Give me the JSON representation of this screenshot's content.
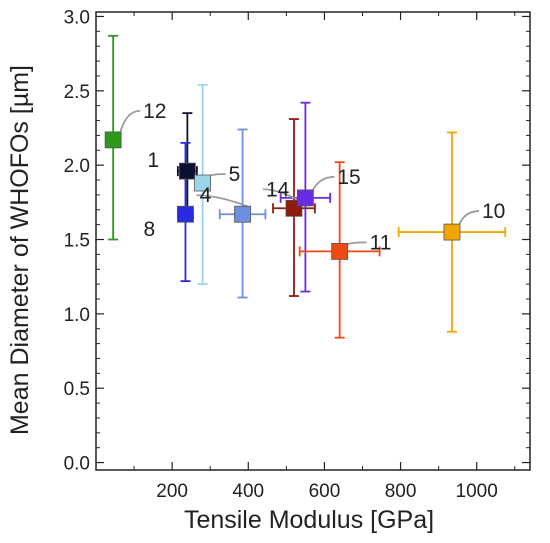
{
  "chart_data": {
    "type": "scatter",
    "xlabel": "Tensile Modulus [GPa]",
    "ylabel": "Mean Diameter of WHOFOs [µm]",
    "xlim": [
      0,
      1140
    ],
    "ylim": [
      -0.05,
      3.03
    ],
    "x_ticks": [
      "200",
      "400",
      "600",
      "800",
      "1000"
    ],
    "y_ticks": [
      "0.0",
      "0.5",
      "1.0",
      "1.5",
      "2.0",
      "2.5",
      "3.0"
    ],
    "grid": false,
    "legend": "none",
    "points": [
      {
        "label": "12",
        "x": 45,
        "y": 2.17,
        "x_err": 0,
        "y_err_low": 0.67,
        "y_err_high": 0.7,
        "color": "#2e9a1c"
      },
      {
        "label": "1",
        "x": 240,
        "y": 1.96,
        "x_err": 25,
        "y_err_low": 0.3,
        "y_err_high": 0.39,
        "color": "#0c1030"
      },
      {
        "label": "5",
        "x": 280,
        "y": 1.88,
        "x_err": 0,
        "y_err_low": 0.68,
        "y_err_high": 0.66,
        "color": "#9ad6ea"
      },
      {
        "label": "8",
        "x": 235,
        "y": 1.67,
        "x_err": 20,
        "y_err_low": 0.45,
        "y_err_high": 0.48,
        "color": "#2a2ae0"
      },
      {
        "label": "4",
        "x": 385,
        "y": 1.67,
        "x_err": 60,
        "y_err_low": 0.56,
        "y_err_high": 0.57,
        "color": "#6d8fe0"
      },
      {
        "label": "14",
        "x": 520,
        "y": 1.71,
        "x_err": 55,
        "y_err_low": 0.59,
        "y_err_high": 0.6,
        "color": "#8e1b0c"
      },
      {
        "label": "15",
        "x": 550,
        "y": 1.78,
        "x_err": 65,
        "y_err_low": 0.63,
        "y_err_high": 0.64,
        "color": "#6a2ce0"
      },
      {
        "label": "11",
        "x": 640,
        "y": 1.42,
        "x_err": 105,
        "y_err_low": 0.58,
        "y_err_high": 0.6,
        "color": "#f04a14"
      },
      {
        "label": "10",
        "x": 935,
        "y": 1.55,
        "x_err": 140,
        "y_err_low": 0.67,
        "y_err_high": 0.67,
        "color": "#f0a800"
      }
    ]
  }
}
